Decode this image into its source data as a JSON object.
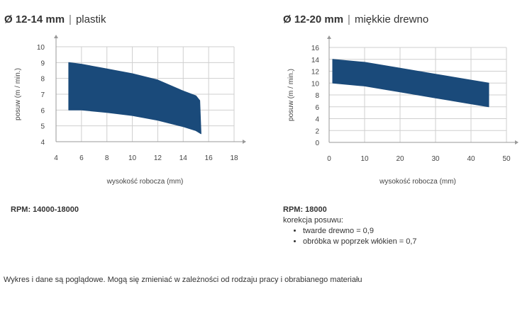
{
  "chart_data": [
    {
      "type": "area",
      "title_diameter": "Ø 12-14 mm",
      "title_separator": "|",
      "title_material": "plastik",
      "xlabel": "wysokość robocza (mm)",
      "ylabel": "posuw (m / min.)",
      "xlim": [
        4,
        18
      ],
      "ylim": [
        4,
        10
      ],
      "xticks": [
        4,
        6,
        8,
        10,
        12,
        14,
        16,
        18
      ],
      "yticks": [
        4,
        5,
        6,
        7,
        8,
        9,
        10
      ],
      "grid": true,
      "color": "#1a4a7a",
      "upper": {
        "x": [
          5,
          6,
          8,
          10,
          12,
          14,
          15,
          15.3
        ],
        "y": [
          9,
          8.9,
          8.6,
          8.3,
          7.9,
          7.2,
          6.9,
          6.6
        ]
      },
      "lower": {
        "x": [
          5,
          6,
          8,
          10,
          12,
          14,
          15,
          15.4
        ],
        "y": [
          6,
          6,
          5.85,
          5.65,
          5.35,
          4.95,
          4.7,
          4.5
        ]
      },
      "rpm": "RPM: 14000-18000"
    },
    {
      "type": "area",
      "title_diameter": "Ø 12-20 mm",
      "title_separator": "|",
      "title_material": "miękkie drewno",
      "xlabel": "wysokość robocza (mm)",
      "ylabel": "posuw (m / min.)",
      "xlim": [
        0,
        50
      ],
      "ylim": [
        0,
        16
      ],
      "xticks": [
        0,
        10,
        20,
        30,
        40,
        50
      ],
      "yticks": [
        0,
        2,
        4,
        6,
        8,
        10,
        12,
        14,
        16
      ],
      "grid": true,
      "color": "#1a4a7a",
      "upper": {
        "x": [
          1,
          10,
          20,
          30,
          40,
          45
        ],
        "y": [
          14,
          13.5,
          12.5,
          11.5,
          10.5,
          10
        ]
      },
      "lower": {
        "x": [
          1,
          10,
          20,
          30,
          40,
          45
        ],
        "y": [
          10,
          9.5,
          8.5,
          7.5,
          6.5,
          6
        ]
      },
      "rpm": "RPM: 18000",
      "correction_title": "korekcja posuwu:",
      "corrections": [
        "twarde drewno = 0,9",
        "obróbka w poprzek włókien = 0,7"
      ]
    }
  ],
  "footer_note": "Wykres i dane są poglądowe. Mogą się zmieniać w zależności od rodzaju pracy i obrabianego materiału"
}
